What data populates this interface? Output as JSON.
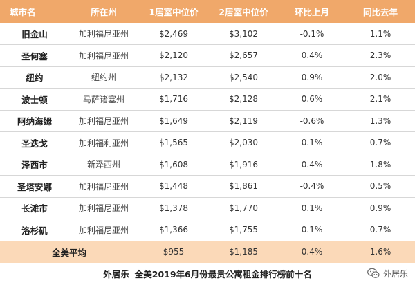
{
  "table": {
    "headers": {
      "city": "城市名",
      "state": "所在州",
      "one_bedroom": "1居室中位价",
      "two_bedroom": "2居室中位价",
      "mom": "环比上月",
      "yoy": "同比去年"
    },
    "rows": [
      {
        "city": "旧金山",
        "state": "加利福尼亚州",
        "one": "$2,469",
        "two": "$3,102",
        "mom": "-0.1%",
        "yoy": "1.1%"
      },
      {
        "city": "圣何塞",
        "state": "加利福尼亚州",
        "one": "$2,120",
        "two": "$2,657",
        "mom": "0.4%",
        "yoy": "2.3%"
      },
      {
        "city": "纽约",
        "state": "纽约州",
        "one": "$2,132",
        "two": "$2,540",
        "mom": "0.9%",
        "yoy": "2.0%"
      },
      {
        "city": "波士顿",
        "state": "马萨诸塞州",
        "one": "$1,716",
        "two": "$2,128",
        "mom": "0.6%",
        "yoy": "2.1%"
      },
      {
        "city": "阿纳海姆",
        "state": "加利福尼亚州",
        "one": "$1,649",
        "two": "$2,119",
        "mom": "-0.6%",
        "yoy": "1.3%"
      },
      {
        "city": "圣迭戈",
        "state": "加利福利亚州",
        "one": "$1,565",
        "two": "$2,030",
        "mom": "0.1%",
        "yoy": "0.7%"
      },
      {
        "city": "泽西市",
        "state": "新泽西州",
        "one": "$1,608",
        "two": "$1,916",
        "mom": "0.4%",
        "yoy": "1.8%"
      },
      {
        "city": "圣塔安娜",
        "state": "加利福尼亚州",
        "one": "$1,448",
        "two": "$1,861",
        "mom": "-0.4%",
        "yoy": "0.5%"
      },
      {
        "city": "长滩市",
        "state": "加利福尼亚州",
        "one": "$1,378",
        "two": "$1,770",
        "mom": "0.1%",
        "yoy": "0.9%"
      },
      {
        "city": "洛杉矶",
        "state": "加利福尼亚州",
        "one": "$1,366",
        "two": "$1,755",
        "mom": "0.1%",
        "yoy": "0.7%"
      }
    ],
    "average": {
      "label": "全美平均",
      "one": "$955",
      "two": "$1,185",
      "mom": "0.4%",
      "yoy": "1.6%"
    }
  },
  "caption": {
    "brand": "外居乐",
    "title": "全美2019年6月份最贵公寓租金排行榜前十名"
  },
  "watermark": {
    "text": "外居乐",
    "icon": "wechat-icon"
  },
  "colors": {
    "header_bg": "#f0a86a",
    "average_bg": "#fbd9b8",
    "row_divider": "#d7d7d7"
  }
}
